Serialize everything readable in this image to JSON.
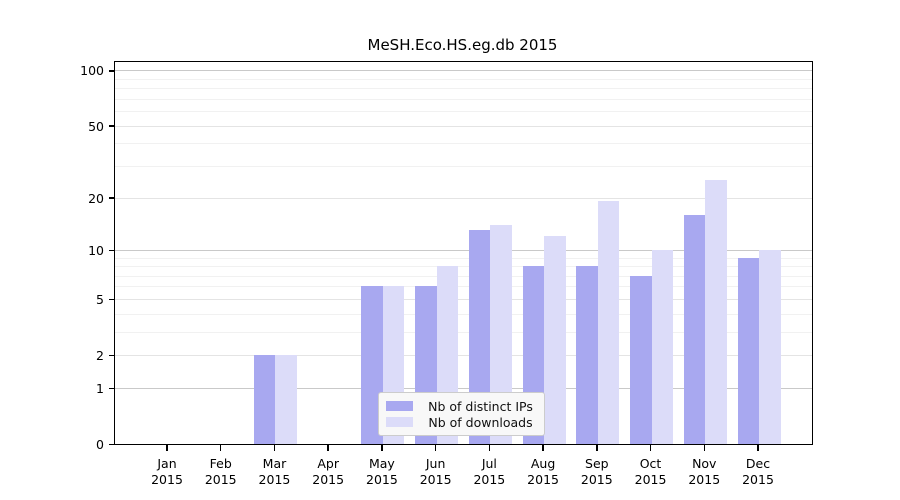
{
  "chart_data": {
    "type": "bar",
    "title": "MeSH.Eco.HS.eg.db 2015",
    "categories": [
      "Jan",
      "Feb",
      "Mar",
      "Apr",
      "May",
      "Jun",
      "Jul",
      "Aug",
      "Sep",
      "Oct",
      "Nov",
      "Dec"
    ],
    "year_label": "2015",
    "series": [
      {
        "name": "Nb of distinct IPs",
        "color": "#a8a8f0",
        "values": [
          0,
          0,
          2,
          0,
          6,
          6,
          13,
          8,
          8,
          7,
          16,
          9
        ]
      },
      {
        "name": "Nb of downloads",
        "color": "#dcdcf9",
        "values": [
          0,
          0,
          2,
          0,
          6,
          8,
          14,
          12,
          19,
          10,
          25,
          10
        ]
      }
    ],
    "yscale": "log1p",
    "ylabel": "",
    "xlabel": "",
    "yticks": [
      0,
      1,
      2,
      5,
      10,
      20,
      50,
      100
    ],
    "decade_gridlines": [
      1,
      10,
      100
    ],
    "minor_gridlines": [
      3,
      4,
      6,
      7,
      8,
      9,
      30,
      40,
      60,
      70,
      80,
      90
    ],
    "ylim": [
      0,
      111
    ],
    "grid": true,
    "legend_position": "inside-bottom-center"
  },
  "colors": {
    "bar_ips": "#a8a8f0",
    "bar_downloads": "#dcdcf9",
    "grid_decade": "#c9c9c9",
    "grid_major": "#e4e4e4",
    "grid_minor": "#f1f1f1",
    "axis": "#000000",
    "legend_bg": "#f8f8f8",
    "legend_border": "#cccccc"
  }
}
